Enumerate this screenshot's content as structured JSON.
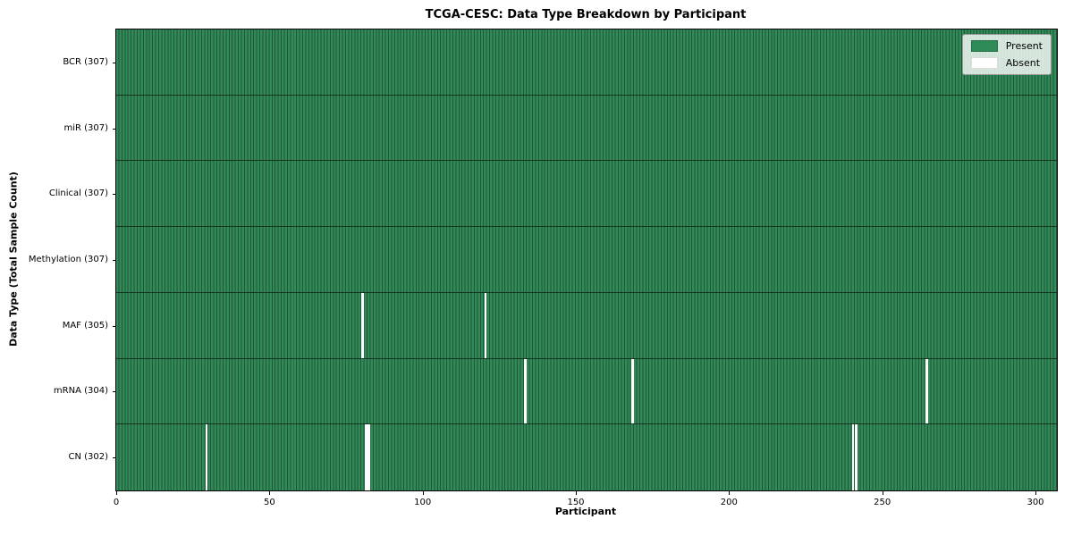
{
  "chart_data": {
    "type": "heatmap",
    "title": "TCGA-CESC: Data Type Breakdown by Participant",
    "xlabel": "Participant",
    "ylabel": "Data Type (Total Sample Count)",
    "x_axis": {
      "min": 0,
      "max": 307,
      "ticks": [
        0,
        50,
        100,
        150,
        200,
        250,
        300
      ]
    },
    "n_participants": 307,
    "grid": false,
    "cell_states": [
      "Present",
      "Absent"
    ],
    "colors": {
      "present": "#2e8b57",
      "present_cell_edge": "#1e5637",
      "absent": "#ffffff",
      "row_divider": "#12331f",
      "axis": "#000000",
      "legend_border": "#999999"
    },
    "legend": {
      "position": "upper right",
      "items": [
        {
          "label": "Present",
          "color": "#2e8b57"
        },
        {
          "label": "Absent",
          "color": "#ffffff"
        }
      ]
    },
    "rows": [
      {
        "label": "BCR (307)",
        "data_type": "BCR",
        "total_samples": 307,
        "absent_participants": []
      },
      {
        "label": "miR (307)",
        "data_type": "miR",
        "total_samples": 307,
        "absent_participants": []
      },
      {
        "label": "Clinical (307)",
        "data_type": "Clinical",
        "total_samples": 307,
        "absent_participants": []
      },
      {
        "label": "Methylation (307)",
        "data_type": "Methylation",
        "total_samples": 307,
        "absent_participants": []
      },
      {
        "label": "MAF (305)",
        "data_type": "MAF",
        "total_samples": 305,
        "absent_participants": [
          80,
          120
        ]
      },
      {
        "label": "mRNA (304)",
        "data_type": "mRNA",
        "total_samples": 304,
        "absent_participants": [
          133,
          168,
          264
        ]
      },
      {
        "label": "CN (302)",
        "data_type": "CN",
        "total_samples": 302,
        "absent_participants": [
          29,
          81,
          82,
          240,
          241
        ]
      }
    ]
  }
}
